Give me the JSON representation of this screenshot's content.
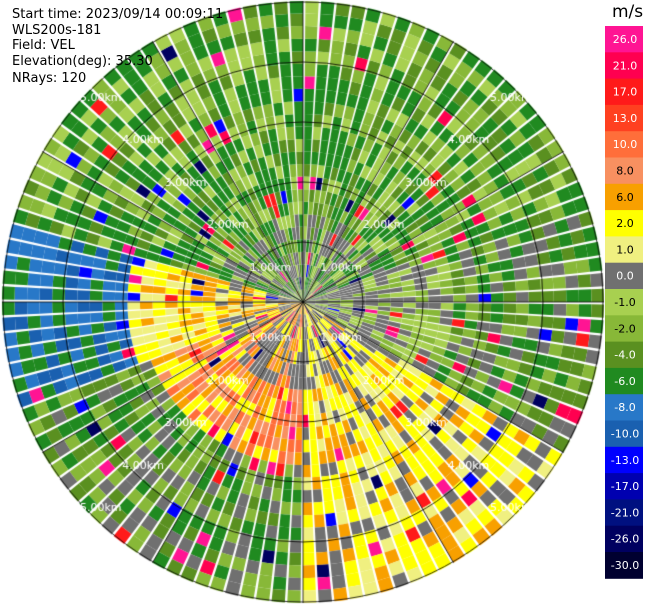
{
  "header": {
    "start_time": "Start time: 2023/09/14 00:09:11",
    "instrument": "WLS200s-181",
    "field": "Field: VEL",
    "elevation": "Elevation(deg): 35.30",
    "nrays": "NRays: 120"
  },
  "range_ring_labels": [
    "1.00km",
    "2.00km",
    "3.00km",
    "4.00km",
    "5.00km"
  ],
  "colorbar": {
    "unit": "m/s",
    "ticks": [
      "26.0",
      "21.0",
      "17.0",
      "13.0",
      "10.0",
      "8.0",
      "6.0",
      "2.0",
      "1.0",
      "0.0",
      "-1.0",
      "-2.0",
      "-4.0",
      "-6.0",
      "-8.0",
      "-10.0",
      "-13.0",
      "-17.0",
      "-21.0",
      "-26.0",
      "-30.0"
    ],
    "colors": [
      "#ff1493",
      "#ff0050",
      "#ff1a1a",
      "#ff4020",
      "#ff6e3a",
      "#f89060",
      "#f8a000",
      "#ffff00",
      "#f0f080",
      "#707070",
      "#a8d050",
      "#88b838",
      "#5a9020",
      "#208a20",
      "#2878c8",
      "#1a60b0",
      "#0000ff",
      "#0000b0",
      "#001080",
      "#000060",
      "#000030"
    ]
  }
}
